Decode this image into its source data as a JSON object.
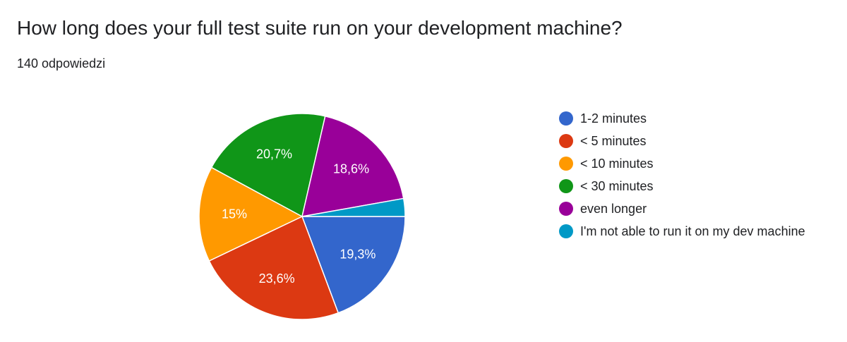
{
  "title": "How long does your full test suite run on your development machine?",
  "subtitle": "140 odpowiedzi",
  "chart_data": {
    "type": "pie",
    "title": "How long does your full test suite run on your development machine?",
    "subtitle": "140 odpowiedzi",
    "legend_position": "right",
    "start_angle_deg": 90,
    "direction": "clockwise",
    "slices": [
      {
        "label": "1-2 minutes",
        "value": 19.3,
        "display": "19,3%",
        "color": "#3366cc"
      },
      {
        "label": "< 5 minutes",
        "value": 23.6,
        "display": "23,6%",
        "color": "#dc3912"
      },
      {
        "label": "< 10 minutes",
        "value": 15.0,
        "display": "15%",
        "color": "#ff9900"
      },
      {
        "label": "< 30 minutes",
        "value": 20.7,
        "display": "20,7%",
        "color": "#109618"
      },
      {
        "label": "even longer",
        "value": 18.6,
        "display": "18,6%",
        "color": "#990099"
      },
      {
        "label": "I'm not able to run it on my dev machine",
        "value": 2.8,
        "display": "",
        "color": "#0099c6"
      }
    ]
  }
}
